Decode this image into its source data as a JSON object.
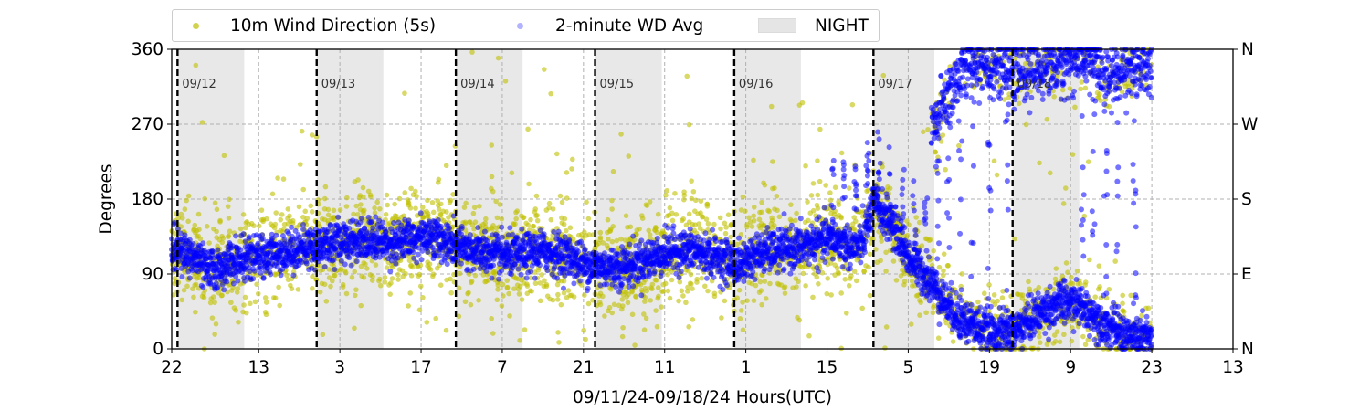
{
  "chart_data": {
    "type": "scatter",
    "xlabel": "09/11/24-09/18/24  Hours(UTC)",
    "ylabel": "Degrees",
    "ylim": [
      0,
      360
    ],
    "x_unit": "hours since 09/11 00:00 UTC",
    "xlim": [
      22,
      205
    ],
    "x_ticks": [
      {
        "x": 22,
        "label": "22"
      },
      {
        "x": 37,
        "label": "13"
      },
      {
        "x": 51,
        "label": "3"
      },
      {
        "x": 65,
        "label": "17"
      },
      {
        "x": 79,
        "label": "7"
      },
      {
        "x": 93,
        "label": "21"
      },
      {
        "x": 107,
        "label": "11"
      },
      {
        "x": 121,
        "label": "1"
      },
      {
        "x": 135,
        "label": "15"
      },
      {
        "x": 149,
        "label": "5"
      },
      {
        "x": 163,
        "label": "19"
      },
      {
        "x": 177,
        "label": "9"
      },
      {
        "x": 191,
        "label": "23"
      },
      {
        "x": 205,
        "label": "13"
      }
    ],
    "y_ticks_left": [
      "0",
      "90",
      "180",
      "270",
      "360"
    ],
    "y_ticks_right": [
      "N",
      "E",
      "S",
      "W",
      "N"
    ],
    "day_markers": [
      {
        "x": 23,
        "label": "09/12"
      },
      {
        "x": 47,
        "label": "09/13"
      },
      {
        "x": 71,
        "label": "09/14"
      },
      {
        "x": 95,
        "label": "09/15"
      },
      {
        "x": 119,
        "label": "09/16"
      },
      {
        "x": 143,
        "label": "09/17"
      },
      {
        "x": 167,
        "label": "09/18"
      }
    ],
    "night_periods": [
      [
        23,
        34.5
      ],
      [
        47,
        58.5
      ],
      [
        71,
        82.5
      ],
      [
        95,
        106.5
      ],
      [
        119,
        130.5
      ],
      [
        143,
        153.5
      ],
      [
        167,
        178.5
      ]
    ],
    "series": [
      {
        "name": "10m Wind Direction (5s)",
        "color": "#bfbf00"
      },
      {
        "name": "2-minute WD Avg",
        "color": "#0000ff"
      }
    ],
    "avg_trend": [
      [
        22,
        120
      ],
      [
        24,
        115
      ],
      [
        26,
        110
      ],
      [
        28,
        95
      ],
      [
        30,
        95
      ],
      [
        32,
        105
      ],
      [
        35,
        108
      ],
      [
        38,
        112
      ],
      [
        42,
        118
      ],
      [
        46,
        122
      ],
      [
        50,
        128
      ],
      [
        55,
        132
      ],
      [
        60,
        128
      ],
      [
        64,
        132
      ],
      [
        66,
        138
      ],
      [
        68,
        132
      ],
      [
        71,
        122
      ],
      [
        74,
        118
      ],
      [
        78,
        112
      ],
      [
        82,
        112
      ],
      [
        86,
        118
      ],
      [
        90,
        112
      ],
      [
        93,
        102
      ],
      [
        97,
        98
      ],
      [
        101,
        100
      ],
      [
        105,
        110
      ],
      [
        108,
        118
      ],
      [
        112,
        118
      ],
      [
        116,
        110
      ],
      [
        118,
        105
      ],
      [
        120,
        100
      ],
      [
        122,
        112
      ],
      [
        126,
        118
      ],
      [
        130,
        122
      ],
      [
        133,
        128
      ],
      [
        136,
        132
      ],
      [
        139,
        122
      ],
      [
        141,
        125
      ],
      [
        143,
        175
      ],
      [
        145,
        160
      ],
      [
        147,
        140
      ],
      [
        149,
        110
      ],
      [
        151,
        95
      ],
      [
        153,
        80
      ],
      [
        155,
        60
      ],
      [
        158,
        35
      ],
      [
        161,
        25
      ],
      [
        164,
        20
      ],
      [
        167,
        20
      ],
      [
        169,
        30
      ],
      [
        172,
        45
      ],
      [
        175,
        55
      ],
      [
        178,
        55
      ],
      [
        181,
        40
      ],
      [
        184,
        25
      ],
      [
        187,
        15
      ],
      [
        190,
        15
      ],
      [
        191,
        10
      ]
    ],
    "avg_upper_branch": [
      [
        153,
        260
      ],
      [
        156,
        310
      ],
      [
        158,
        330
      ],
      [
        161,
        345
      ],
      [
        164,
        340
      ],
      [
        167,
        330
      ],
      [
        181,
        350
      ],
      [
        183,
        320
      ],
      [
        185,
        330
      ],
      [
        187,
        340
      ],
      [
        189,
        330
      ],
      [
        191,
        335
      ]
    ],
    "grid": "dashed at y ticks and x ticks",
    "legend_position": "top, above plot"
  },
  "legend": {
    "item1": "10m Wind Direction (5s)",
    "item2": "2-minute WD Avg",
    "item3": "NIGHT"
  }
}
